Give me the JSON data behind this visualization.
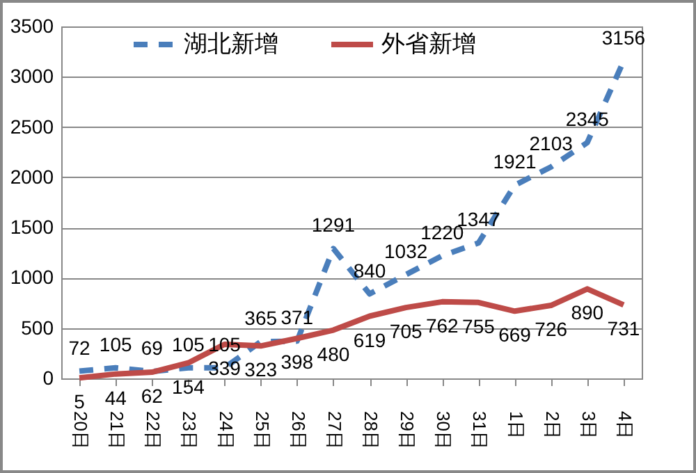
{
  "chart_data": {
    "type": "line",
    "categories": [
      "20日",
      "21日",
      "22日",
      "23日",
      "24日",
      "25日",
      "26日",
      "27日",
      "28日",
      "29日",
      "30日",
      "31日",
      "1日",
      "2日",
      "3日",
      "4日"
    ],
    "series": [
      {
        "name": "湖北新增",
        "color": "#4a7ebb",
        "line_style": "dashed",
        "values": [
          72,
          105,
          69,
          105,
          105,
          365,
          371,
          1291,
          840,
          1032,
          1220,
          1347,
          1921,
          2103,
          2345,
          3156
        ]
      },
      {
        "name": "外省新增",
        "color": "#be4b48",
        "line_style": "solid",
        "values": [
          5,
          44,
          62,
          154,
          339,
          323,
          398,
          480,
          619,
          705,
          762,
          755,
          669,
          726,
          890,
          731
        ]
      }
    ],
    "ylim": [
      0,
      3500
    ],
    "yticks": [
      0,
      500,
      1000,
      1500,
      2000,
      2500,
      3000,
      3500
    ],
    "grid": "y",
    "legend": "top",
    "data_labels": true,
    "marker": "none"
  }
}
